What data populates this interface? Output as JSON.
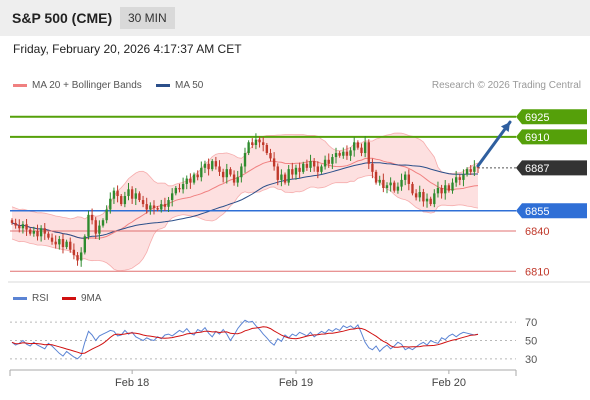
{
  "header": {
    "instrument": "S&P 500 (CME)",
    "timeframe": "30 MIN"
  },
  "date_line": "Friday, February 20, 2026 4:17:37 AM CET",
  "legend": {
    "bb_label": "MA 20 + Bollinger Bands",
    "ma50_label": "MA 50",
    "credit": "Research © 2026 Trading Central"
  },
  "rsi_legend": {
    "rsi_label": "RSI",
    "ma_label": "9MA"
  },
  "colors": {
    "bull": "#2e8b2e",
    "bear": "#c0392b",
    "bb_fill": "#fde0e0",
    "bb_line": "#f08080",
    "ma50": "#2b4f8a",
    "target": "#55a00a",
    "current": "#333333",
    "pivot": "#2f6fd6",
    "support": "#e07070",
    "rsi": "#5b84d4",
    "rsi_ma": "#d01010"
  },
  "chart_data": [
    {
      "type": "candlestick",
      "x_ticks": [
        "Feb 18",
        "Feb 19",
        "Feb 20"
      ],
      "ylim": [
        6802,
        6936
      ],
      "levels": [
        {
          "label": "6925",
          "value": 6925,
          "kind": "target"
        },
        {
          "label": "6910",
          "value": 6910,
          "kind": "target"
        },
        {
          "label": "6887",
          "value": 6887,
          "kind": "current"
        },
        {
          "label": "6855",
          "value": 6855,
          "kind": "pivot"
        },
        {
          "label": "6840",
          "value": 6840,
          "kind": "support"
        },
        {
          "label": "6810",
          "value": 6810,
          "kind": "support"
        }
      ],
      "close": [
        6846,
        6844,
        6842,
        6845,
        6841,
        6838,
        6840,
        6836,
        6842,
        6838,
        6835,
        6832,
        6830,
        6834,
        6828,
        6832,
        6826,
        6822,
        6818,
        6824,
        6836,
        6852,
        6848,
        6838,
        6844,
        6848,
        6856,
        6864,
        6870,
        6866,
        6860,
        6866,
        6871,
        6864,
        6868,
        6863,
        6860,
        6856,
        6859,
        6857,
        6856,
        6860,
        6858,
        6863,
        6868,
        6872,
        6871,
        6875,
        6879,
        6876,
        6882,
        6880,
        6887,
        6890,
        6886,
        6892,
        6888,
        6884,
        6880,
        6886,
        6882,
        6876,
        6880,
        6888,
        6898,
        6906,
        6904,
        6908,
        6906,
        6904,
        6898,
        6894,
        6888,
        6878,
        6882,
        6876,
        6886,
        6882,
        6887,
        6884,
        6890,
        6887,
        6892,
        6888,
        6884,
        6888,
        6893,
        6890,
        6895,
        6898,
        6896,
        6899,
        6896,
        6900,
        6906,
        6902,
        6898,
        6906,
        6890,
        6884,
        6876,
        6878,
        6872,
        6874,
        6876,
        6870,
        6873,
        6878,
        6882,
        6875,
        6868,
        6865,
        6869,
        6862,
        6864,
        6860,
        6868,
        6872,
        6868,
        6874,
        6870,
        6876,
        6880,
        6878,
        6882,
        6886,
        6884,
        6888,
        6887
      ],
      "rsi": [
        48,
        45,
        47,
        50,
        46,
        44,
        48,
        45,
        43,
        41,
        47,
        44,
        40,
        36,
        33,
        38,
        35,
        32,
        30,
        34,
        48,
        60,
        56,
        50,
        55,
        57,
        59,
        61,
        60,
        55,
        56,
        61,
        57,
        59,
        54,
        52,
        50,
        53,
        51,
        50,
        54,
        52,
        56,
        57,
        55,
        58,
        61,
        59,
        63,
        58,
        56,
        62,
        60,
        64,
        58,
        54,
        60,
        57,
        62,
        57,
        50,
        56,
        63,
        68,
        72,
        70,
        71,
        66,
        62,
        57,
        53,
        48,
        45,
        52,
        49,
        56,
        53,
        57,
        55,
        59,
        57,
        55,
        59,
        54,
        57,
        60,
        58,
        62,
        60,
        63,
        61,
        66,
        64,
        66,
        63,
        67,
        58,
        48,
        42,
        40,
        44,
        38,
        42,
        45,
        41,
        44,
        48,
        46,
        40,
        42,
        40,
        43,
        46,
        48,
        45,
        50,
        48,
        47,
        53,
        51,
        55,
        57,
        54,
        57,
        59,
        58,
        57,
        56,
        57
      ],
      "rsi_ticks": [
        "70",
        "50",
        "30"
      ],
      "rsi_range": [
        20,
        80
      ]
    }
  ]
}
